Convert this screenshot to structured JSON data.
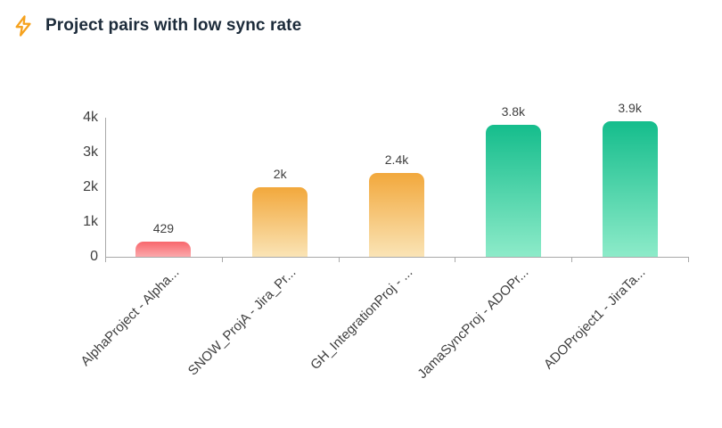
{
  "header": {
    "title": "Project pairs with low sync rate",
    "title_color": "#1c2b3a",
    "icon": "lightning-bolt-icon",
    "icon_color": "#f6a21e"
  },
  "chart_data": {
    "type": "bar",
    "title": "Project pairs with low sync rate",
    "categories": [
      "AlphaProject - Alpha...",
      "SNOW_ProjA - Jira_Pr...",
      "GH_IntegrationProj - ...",
      "JamaSyncProj - ADOPr...",
      "ADOProject1 - JiraTa..."
    ],
    "values": [
      429,
      2000,
      2400,
      3800,
      3900
    ],
    "value_labels": [
      "429",
      "2k",
      "2.4k",
      "3.8k",
      "3.9k"
    ],
    "y_ticks": [
      "4k",
      "3k",
      "2k",
      "1k",
      "0"
    ],
    "ylim": [
      0,
      4000
    ],
    "xlabel": "",
    "ylabel": "",
    "grid": false,
    "legend": false,
    "bar_gradients": [
      {
        "top": "#f8676c",
        "bottom": "#fba9ac"
      },
      {
        "top": "#f2a83c",
        "bottom": "#fae4b6"
      },
      {
        "top": "#f2a83c",
        "bottom": "#fae4b6"
      },
      {
        "top": "#15bd8c",
        "bottom": "#8debc9"
      },
      {
        "top": "#15bd8c",
        "bottom": "#8debc9"
      }
    ],
    "axis_color": "#a9a9a9",
    "tick_label_color": "#3f3f3f",
    "value_label_color": "#404040"
  }
}
